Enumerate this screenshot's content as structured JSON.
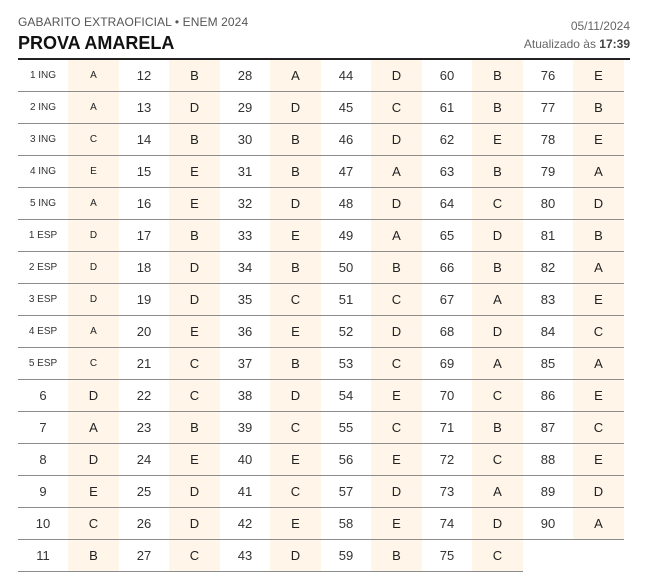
{
  "header": {
    "kicker": "GABARITO EXTRAOFICIAL • ENEM 2024",
    "title": "PROVA AMARELA",
    "date": "05/11/2024",
    "updated_prefix": "Atualizado às",
    "updated_time": "17:39"
  },
  "rows": [
    [
      [
        "1 ING",
        "A"
      ],
      [
        "12",
        "B"
      ],
      [
        "28",
        "A"
      ],
      [
        "44",
        "D"
      ],
      [
        "60",
        "B"
      ],
      [
        "76",
        "E"
      ]
    ],
    [
      [
        "2 ING",
        "A"
      ],
      [
        "13",
        "D"
      ],
      [
        "29",
        "D"
      ],
      [
        "45",
        "C"
      ],
      [
        "61",
        "B"
      ],
      [
        "77",
        "B"
      ]
    ],
    [
      [
        "3 ING",
        "C"
      ],
      [
        "14",
        "B"
      ],
      [
        "30",
        "B"
      ],
      [
        "46",
        "D"
      ],
      [
        "62",
        "E"
      ],
      [
        "78",
        "E"
      ]
    ],
    [
      [
        "4 ING",
        "E"
      ],
      [
        "15",
        "E"
      ],
      [
        "31",
        "B"
      ],
      [
        "47",
        "A"
      ],
      [
        "63",
        "B"
      ],
      [
        "79",
        "A"
      ]
    ],
    [
      [
        "5 ING",
        "A"
      ],
      [
        "16",
        "E"
      ],
      [
        "32",
        "D"
      ],
      [
        "48",
        "D"
      ],
      [
        "64",
        "C"
      ],
      [
        "80",
        "D"
      ]
    ],
    [
      [
        "1 ESP",
        "D"
      ],
      [
        "17",
        "B"
      ],
      [
        "33",
        "E"
      ],
      [
        "49",
        "A"
      ],
      [
        "65",
        "D"
      ],
      [
        "81",
        "B"
      ]
    ],
    [
      [
        "2 ESP",
        "D"
      ],
      [
        "18",
        "D"
      ],
      [
        "34",
        "B"
      ],
      [
        "50",
        "B"
      ],
      [
        "66",
        "B"
      ],
      [
        "82",
        "A"
      ]
    ],
    [
      [
        "3 ESP",
        "D"
      ],
      [
        "19",
        "D"
      ],
      [
        "35",
        "C"
      ],
      [
        "51",
        "C"
      ],
      [
        "67",
        "A"
      ],
      [
        "83",
        "E"
      ]
    ],
    [
      [
        "4 ESP",
        "A"
      ],
      [
        "20",
        "E"
      ],
      [
        "36",
        "E"
      ],
      [
        "52",
        "D"
      ],
      [
        "68",
        "D"
      ],
      [
        "84",
        "C"
      ]
    ],
    [
      [
        "5 ESP",
        "C"
      ],
      [
        "21",
        "C"
      ],
      [
        "37",
        "B"
      ],
      [
        "53",
        "C"
      ],
      [
        "69",
        "A"
      ],
      [
        "85",
        "A"
      ]
    ],
    [
      [
        "6",
        "D"
      ],
      [
        "22",
        "C"
      ],
      [
        "38",
        "D"
      ],
      [
        "54",
        "E"
      ],
      [
        "70",
        "C"
      ],
      [
        "86",
        "E"
      ]
    ],
    [
      [
        "7",
        "A"
      ],
      [
        "23",
        "B"
      ],
      [
        "39",
        "C"
      ],
      [
        "55",
        "C"
      ],
      [
        "71",
        "B"
      ],
      [
        "87",
        "C"
      ]
    ],
    [
      [
        "8",
        "D"
      ],
      [
        "24",
        "E"
      ],
      [
        "40",
        "E"
      ],
      [
        "56",
        "E"
      ],
      [
        "72",
        "C"
      ],
      [
        "88",
        "E"
      ]
    ],
    [
      [
        "9",
        "E"
      ],
      [
        "25",
        "D"
      ],
      [
        "41",
        "C"
      ],
      [
        "57",
        "D"
      ],
      [
        "73",
        "A"
      ],
      [
        "89",
        "D"
      ]
    ],
    [
      [
        "10",
        "C"
      ],
      [
        "26",
        "D"
      ],
      [
        "42",
        "E"
      ],
      [
        "58",
        "E"
      ],
      [
        "74",
        "D"
      ],
      [
        "90",
        "A"
      ]
    ],
    [
      [
        "11",
        "B"
      ],
      [
        "27",
        "C"
      ],
      [
        "43",
        "D"
      ],
      [
        "59",
        "B"
      ],
      [
        "75",
        "C"
      ]
    ]
  ]
}
